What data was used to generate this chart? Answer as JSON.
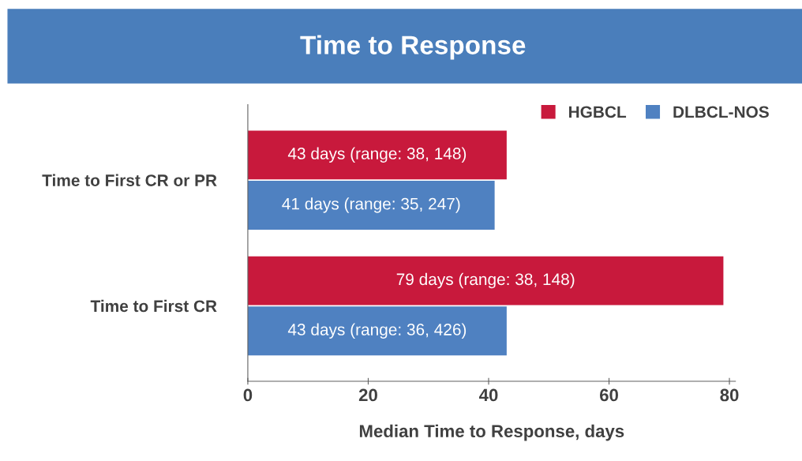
{
  "chart_data": {
    "type": "bar",
    "orientation": "horizontal",
    "title": "Time to Response",
    "xlabel": "Median Time to Response, days",
    "categories": [
      "Time to First CR or PR",
      "Time to First CR"
    ],
    "series": [
      {
        "name": "HGBCL",
        "color": "#c8193c",
        "values": [
          43,
          79
        ],
        "value_labels": [
          "43 days (range: 38, 148)",
          "79 days (range: 38, 148)"
        ]
      },
      {
        "name": "DLBCL-NOS",
        "color": "#4f81c1",
        "values": [
          41,
          43
        ],
        "value_labels": [
          "41 days (range: 35, 247)",
          "43 days (range: 36, 426)"
        ]
      }
    ],
    "xlim": [
      0,
      81
    ],
    "xticks": [
      0,
      20,
      40,
      60,
      80
    ],
    "legend": "top right",
    "grid": false
  }
}
